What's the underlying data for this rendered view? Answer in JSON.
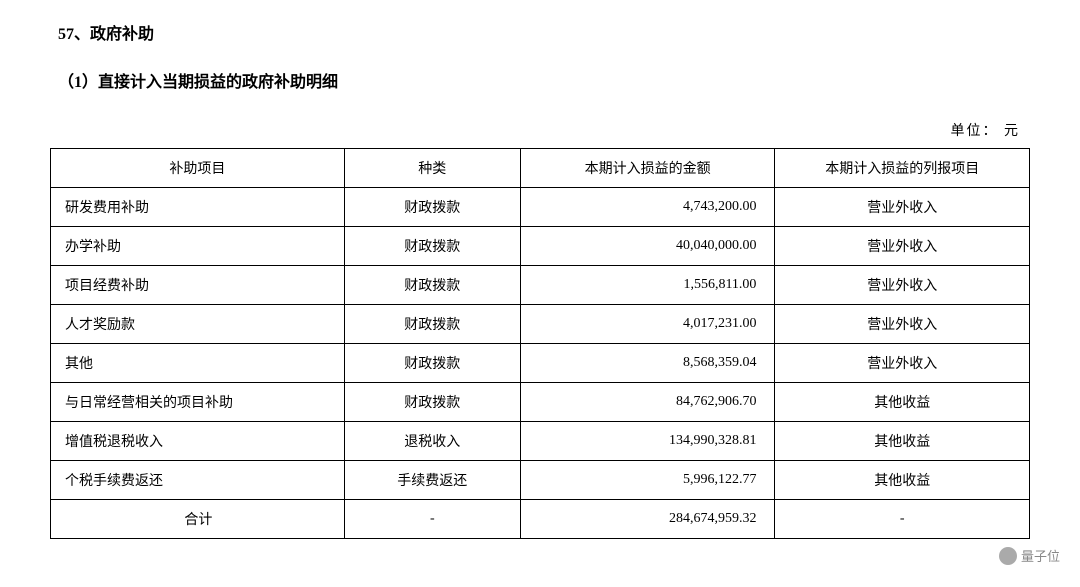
{
  "heading1": "57、政府补助",
  "heading2": "（1）直接计入当期损益的政府补助明细",
  "unitLabel": "单位：  元",
  "table": {
    "headers": {
      "item": "补助项目",
      "type": "种类",
      "amount": "本期计入损益的金额",
      "report": "本期计入损益的列报项目"
    },
    "rows": [
      {
        "item": "研发费用补助",
        "type": "财政拨款",
        "amount": "4,743,200.00",
        "report": "营业外收入"
      },
      {
        "item": "办学补助",
        "type": "财政拨款",
        "amount": "40,040,000.00",
        "report": "营业外收入"
      },
      {
        "item": "项目经费补助",
        "type": "财政拨款",
        "amount": "1,556,811.00",
        "report": "营业外收入"
      },
      {
        "item": "人才奖励款",
        "type": "财政拨款",
        "amount": "4,017,231.00",
        "report": "营业外收入"
      },
      {
        "item": "其他",
        "type": "财政拨款",
        "amount": "8,568,359.04",
        "report": "营业外收入"
      },
      {
        "item": "与日常经营相关的项目补助",
        "type": "财政拨款",
        "amount": "84,762,906.70",
        "report": "其他收益"
      },
      {
        "item": "增值税退税收入",
        "type": "退税收入",
        "amount": "134,990,328.81",
        "report": "其他收益"
      },
      {
        "item": "个税手续费返还",
        "type": "手续费返还",
        "amount": "5,996,122.77",
        "report": "其他收益"
      }
    ],
    "total": {
      "item": "合计",
      "type": "-",
      "amount": "284,674,959.32",
      "report": "-"
    }
  },
  "watermarkText": "量子位",
  "colors": {
    "text": "#000000",
    "border": "#000000",
    "background": "#ffffff",
    "watermark": "#888888"
  },
  "typography": {
    "headingFontSize": 16,
    "bodyFontSize": 14,
    "fontFamily": "SimSun"
  }
}
